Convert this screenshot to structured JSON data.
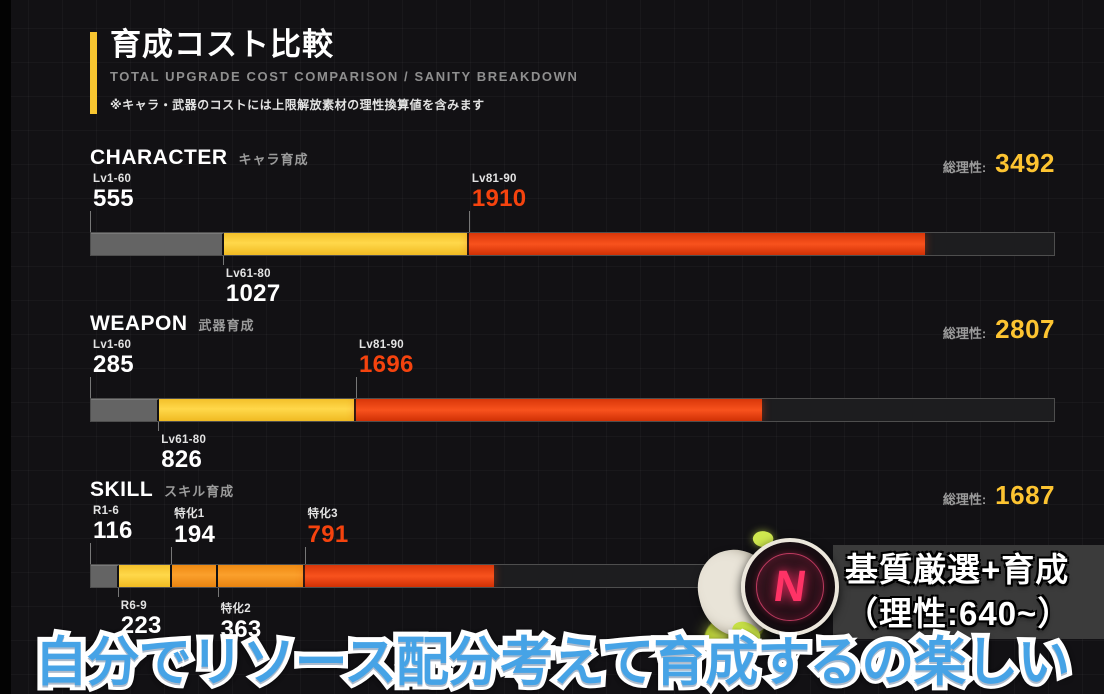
{
  "header": {
    "title": "育成コスト比較",
    "subtitle": "TOTAL UPGRADE COST COMPARISON / SANITY BREAKDOWN",
    "note": "※キャラ・武器のコストには上限解放素材の理性換算値を含みます"
  },
  "chart_data": {
    "type": "bar",
    "subtype": "horizontal-stacked",
    "title": "育成コスト比較 / TOTAL UPGRADE COST COMPARISON / SANITY BREAKDOWN",
    "unit_label": "理性",
    "axis_max": 4030,
    "grid": true,
    "total_label": "総理性:",
    "sections": [
      {
        "id": "character",
        "heading": "CHARACTER",
        "heading_jp": "キャラ育成",
        "total": "3492",
        "segments": [
          {
            "label": "Lv1-60",
            "value": 555,
            "color": "gray",
            "label_row": "top",
            "value_color": "white"
          },
          {
            "label": "Lv61-80",
            "value": 1027,
            "color": "yellow",
            "label_row": "bottom",
            "value_color": "white"
          },
          {
            "label": "Lv81-90",
            "value": 1910,
            "color": "red",
            "label_row": "top",
            "value_color": "red"
          }
        ]
      },
      {
        "id": "weapon",
        "heading": "WEAPON",
        "heading_jp": "武器育成",
        "total": "2807",
        "segments": [
          {
            "label": "Lv1-60",
            "value": 285,
            "color": "gray",
            "label_row": "top",
            "value_color": "white"
          },
          {
            "label": "Lv61-80",
            "value": 826,
            "color": "yellow",
            "label_row": "bottom",
            "value_color": "white"
          },
          {
            "label": "Lv81-90",
            "value": 1696,
            "color": "red",
            "label_row": "top",
            "value_color": "red"
          }
        ]
      },
      {
        "id": "skill",
        "heading": "SKILL",
        "heading_jp": "スキル育成",
        "total": "1687",
        "segments": [
          {
            "label": "R1-6",
            "value": 116,
            "color": "gray",
            "label_row": "top",
            "value_color": "white"
          },
          {
            "label": "R6-9",
            "value": 223,
            "color": "yellow",
            "label_row": "bottom",
            "value_color": "white"
          },
          {
            "label": "特化1",
            "value": 194,
            "color": "orange",
            "label_row": "top",
            "value_color": "white"
          },
          {
            "label": "特化2",
            "value": 363,
            "color": "orange",
            "label_row": "bottom",
            "value_color": "white"
          },
          {
            "label": "特化3",
            "value": 791,
            "color": "red",
            "label_row": "top",
            "value_color": "red"
          }
        ]
      }
    ]
  },
  "badge": {
    "line1": "基質厳選+育成",
    "line2": "（理性:640~）"
  },
  "gadget": {
    "glyph": "N"
  },
  "caption": {
    "text": "自分でリソース配分考えて育成するの楽しい"
  },
  "colors": {
    "accent_yellow": "#f7c530",
    "total_yellow": "#fdc431",
    "bar_gray": "#646464",
    "bar_yellow": "#fdd034",
    "bar_orange": "#f7941e",
    "bar_red": "#ef4413",
    "value_red": "#f5430e",
    "caption_blue": "#46a3e6",
    "badge_bg": "#3b3b3b",
    "background": "#121114"
  }
}
